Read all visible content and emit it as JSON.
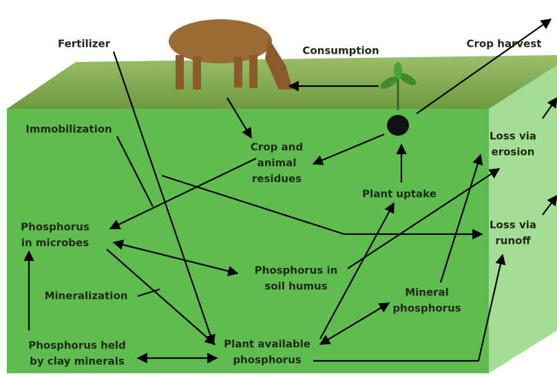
{
  "nodes": [
    {
      "lines": [
        "Fertilizer"
      ]
    },
    {
      "lines": [
        "Consumption"
      ]
    },
    {
      "lines": [
        "Crop harvest"
      ]
    },
    {
      "lines": [
        "Immobilization"
      ]
    },
    {
      "lines": [
        "Crop and",
        "animal",
        "residues"
      ]
    },
    {
      "lines": [
        "Loss via",
        "erosion"
      ]
    },
    {
      "lines": [
        "Plant uptake"
      ]
    },
    {
      "lines": [
        "Phosphorus",
        "in microbes"
      ]
    },
    {
      "lines": [
        "Loss via",
        "runoff"
      ]
    },
    {
      "lines": [
        "Phosphorus in",
        "soil humus"
      ]
    },
    {
      "lines": [
        "Mineralization"
      ]
    },
    {
      "lines": [
        "Mineral",
        "phosphorus"
      ]
    },
    {
      "lines": [
        "Phosphorus held",
        "by clay minerals"
      ]
    },
    {
      "lines": [
        "Plant available",
        "phosphorus"
      ]
    }
  ]
}
